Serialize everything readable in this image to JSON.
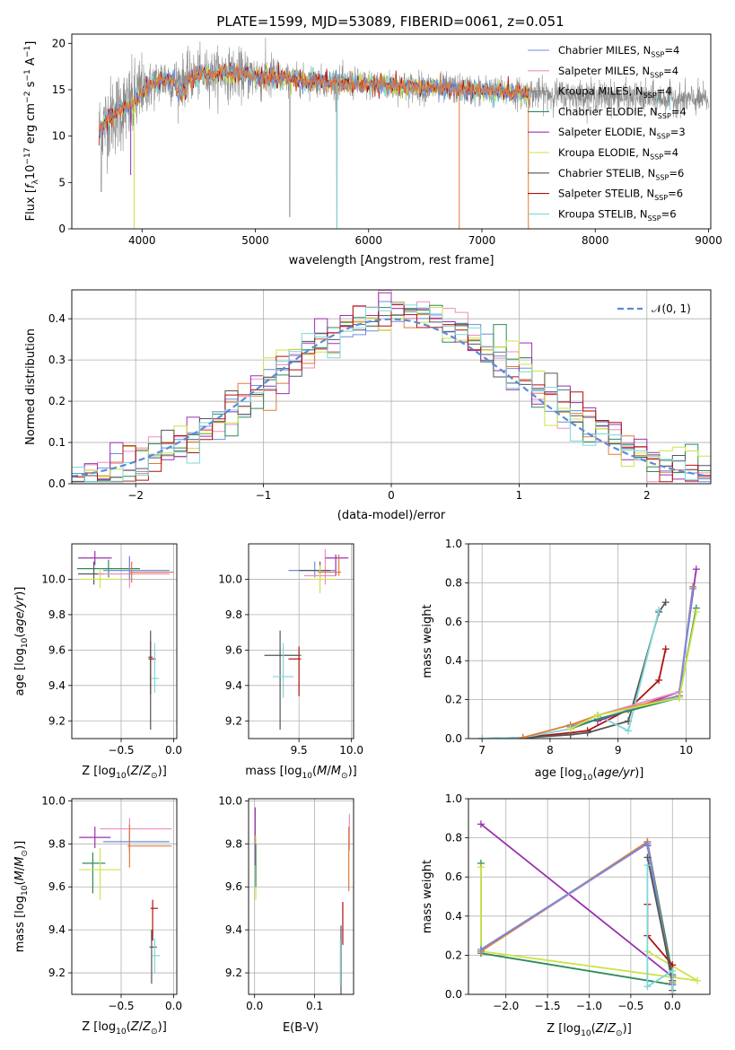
{
  "figure_title": "PLATE=1599, MJD=53089, FIBERID=0061, z=0.051",
  "colors": {
    "Chabrier MILES": "#6c8ee0",
    "Salpeter MILES": "#e98fbf",
    "Kroupa MILES": "#888888",
    "Chabrier ELODIE": "#2e8b57",
    "Salpeter ELODIE": "#9b30b0",
    "Kroupa ELODIE": "#cde34a",
    "Chabrier STELIB": "#555555",
    "Salpeter STELIB": "#b01010",
    "Kroupa STELIB": "#7fd6d9",
    "extra_orange": "#e07b39",
    "normal_curve": "#5b8bd6"
  },
  "chart_data": [
    {
      "id": "spectrum",
      "type": "line",
      "title": "PLATE=1599, MJD=53089, FIBERID=0061, z=0.051",
      "xlabel": "wavelength [Angstrom, rest frame]",
      "ylabel": "Flux [f_λ 10^-17 erg cm^-2 s^-1 A^-1]",
      "xlim": [
        3380,
        9020
      ],
      "ylim": [
        0,
        21
      ],
      "xticks": [
        4000,
        5000,
        6000,
        7000,
        8000,
        9000
      ],
      "yticks": [
        0,
        5,
        10,
        15,
        20
      ],
      "grid": false,
      "legend_position": "top-right",
      "legend": [
        {
          "label": "Chabrier MILES",
          "sub": "SSP",
          "n": "4"
        },
        {
          "label": "Salpeter MILES",
          "sub": "SSP",
          "n": "4"
        },
        {
          "label": "Kroupa MILES",
          "sub": "SSP",
          "n": "4"
        },
        {
          "label": "Chabrier ELODIE",
          "sub": "SSP",
          "n": "4"
        },
        {
          "label": "Salpeter ELODIE",
          "sub": "SSP",
          "n": "3"
        },
        {
          "label": "Kroupa ELODIE",
          "sub": "SSP",
          "n": "4"
        },
        {
          "label": "Chabrier STELIB",
          "sub": "SSP",
          "n": "6"
        },
        {
          "label": "Salpeter STELIB",
          "sub": "SSP",
          "n": "6"
        },
        {
          "label": "Kroupa STELIB",
          "sub": "SSP",
          "n": "6"
        }
      ],
      "approx_continuum": {
        "x": [
          3620,
          3700,
          3800,
          3900,
          3950,
          4000,
          4100,
          4200,
          4300,
          4500,
          4700,
          5000,
          5200,
          5500,
          5800,
          6100,
          6400,
          6700,
          7000,
          7200,
          7400
        ],
        "y": [
          10.5,
          11.8,
          12.8,
          13.2,
          14.0,
          14.8,
          15.6,
          16.2,
          15.8,
          16.6,
          16.8,
          16.5,
          16.2,
          16.0,
          15.7,
          15.5,
          15.3,
          15.1,
          14.9,
          14.7,
          14.6
        ]
      }
    },
    {
      "id": "residual_histogram",
      "type": "histogram",
      "xlabel": "(data-model)/error",
      "ylabel": "Normed distribution",
      "xlim": [
        -2.5,
        2.5
      ],
      "ylim": [
        0,
        0.47
      ],
      "xticks": [
        -2,
        -1,
        0,
        1,
        2
      ],
      "yticks": [
        0.0,
        0.1,
        0.2,
        0.3,
        0.4
      ],
      "grid": true,
      "legend_position": "top-right",
      "legend": [
        {
          "label": "𝒩(0, 1)"
        }
      ],
      "bin_width": 0.1,
      "reference_curve": "standard normal"
    },
    {
      "id": "age_vs_Z",
      "type": "errorbar",
      "xlabel": "Z [log10(Z/Z⊙)]",
      "ylabel": "age  [log10(age/yr)]",
      "xlim": [
        -0.97,
        0.03
      ],
      "ylim": [
        9.1,
        10.2
      ],
      "xticks": [
        -0.5,
        0.0
      ],
      "yticks": [
        9.2,
        9.4,
        9.6,
        9.8,
        10.0
      ],
      "grid": true,
      "points": [
        {
          "model": "Salpeter ELODIE",
          "x": -0.75,
          "y": 10.12,
          "xerr": [
            0.16,
            0.16
          ],
          "yerr": [
            0.04,
            0.04
          ]
        },
        {
          "model": "Chabrier ELODIE",
          "x": -0.62,
          "y": 10.06,
          "xerr": [
            0.3,
            0.3
          ],
          "yerr": [
            0.05,
            0.05
          ]
        },
        {
          "model": "Chabrier STELIB",
          "x": -0.76,
          "y": 10.03,
          "xerr": [
            0.15,
            0.1
          ],
          "yerr": [
            0.06,
            0.07
          ]
        },
        {
          "model": "Kroupa ELODIE",
          "x": -0.7,
          "y": 10.0,
          "xerr": [
            0.2,
            0.2
          ],
          "yerr": [
            0.05,
            0.06
          ]
        },
        {
          "model": "Salpeter MILES",
          "x": -0.42,
          "y": 10.03,
          "xerr": [
            0.3,
            0.38
          ],
          "yerr": [
            0.08,
            0.1
          ]
        },
        {
          "model": "Chabrier MILES",
          "x": -0.42,
          "y": 10.05,
          "xerr": [
            0.25,
            0.38
          ],
          "yerr": [
            0.05,
            0.08
          ]
        },
        {
          "model": "extra_orange",
          "x": -0.4,
          "y": 10.04,
          "xerr": [
            0.02,
            0.4
          ],
          "yerr": [
            0.06,
            0.06
          ]
        },
        {
          "model": "Salpeter STELIB",
          "x": -0.22,
          "y": 9.55,
          "xerr": [
            0.02,
            0.05
          ],
          "yerr": [
            0.2,
            0.1
          ]
        },
        {
          "model": "Chabrier STELIB",
          "x": -0.22,
          "y": 9.56,
          "xerr": [
            0.02,
            0.02
          ],
          "yerr": [
            0.41,
            0.15
          ]
        },
        {
          "model": "Kroupa STELIB",
          "x": -0.18,
          "y": 9.44,
          "xerr": [
            0.03,
            0.04
          ],
          "yerr": [
            0.08,
            0.2
          ]
        }
      ]
    },
    {
      "id": "age_vs_mass",
      "type": "errorbar",
      "xlabel": "mass [log10(M/M⊙)]",
      "ylabel": "",
      "xlim": [
        9.02,
        10.02
      ],
      "ylim": [
        9.1,
        10.2
      ],
      "xticks": [
        9.5,
        10.0
      ],
      "yticks": [
        9.2,
        9.4,
        9.6,
        9.8,
        10.0
      ],
      "grid": true,
      "points": [
        {
          "model": "Chabrier MILES",
          "x": 9.65,
          "y": 10.05,
          "xerr": [
            0.25,
            0.2
          ],
          "yerr": [
            0.04,
            0.05
          ]
        },
        {
          "model": "Salpeter MILES",
          "x": 9.75,
          "y": 10.02,
          "xerr": [
            0.2,
            0.1
          ],
          "yerr": [
            0.05,
            0.15
          ]
        },
        {
          "model": "Salpeter ELODIE",
          "x": 9.85,
          "y": 10.12,
          "xerr": [
            0.1,
            0.12
          ],
          "yerr": [
            0.1,
            0.02
          ]
        },
        {
          "model": "Chabrier STELIB",
          "x": 9.7,
          "y": 10.05,
          "xerr": [
            0.2,
            0.1
          ],
          "yerr": [
            0.06,
            0.05
          ]
        },
        {
          "model": "Kroupa ELODIE",
          "x": 9.7,
          "y": 10.0,
          "xerr": [
            0.1,
            0.15
          ],
          "yerr": [
            0.08,
            0.08
          ]
        },
        {
          "model": "extra_orange",
          "x": 9.88,
          "y": 10.04,
          "xerr": [
            0.2,
            0.02
          ],
          "yerr": [
            0.02,
            0.1
          ]
        },
        {
          "model": "Salpeter STELIB",
          "x": 9.5,
          "y": 9.55,
          "xerr": [
            0.1,
            0.02
          ],
          "yerr": [
            0.21,
            0.07
          ]
        },
        {
          "model": "Chabrier STELIB",
          "x": 9.32,
          "y": 9.57,
          "xerr": [
            0.15,
            0.2
          ],
          "yerr": [
            0.42,
            0.14
          ]
        },
        {
          "model": "Kroupa STELIB",
          "x": 9.35,
          "y": 9.45,
          "xerr": [
            0.1,
            0.1
          ],
          "yerr": [
            0.12,
            0.19
          ]
        }
      ]
    },
    {
      "id": "weight_vs_age",
      "type": "line",
      "xlabel": "age  [log10(age/yr)]",
      "ylabel": "mass weight",
      "xlim": [
        6.8,
        10.35
      ],
      "ylim": [
        0,
        1.0
      ],
      "xticks": [
        7,
        8,
        9,
        10
      ],
      "yticks": [
        0.0,
        0.2,
        0.4,
        0.6,
        0.8,
        1.0
      ],
      "grid": true,
      "series": [
        {
          "model": "Salpeter STELIB",
          "x": [
            7.0,
            7.6,
            8.3,
            8.55,
            9.15,
            9.6,
            9.7
          ],
          "y": [
            0.0,
            0.005,
            0.03,
            0.04,
            0.15,
            0.3,
            0.46
          ]
        },
        {
          "model": "Chabrier STELIB",
          "x": [
            7.0,
            7.6,
            8.3,
            8.55,
            9.15,
            9.6,
            9.7
          ],
          "y": [
            0.0,
            0.003,
            0.02,
            0.03,
            0.09,
            0.65,
            0.7
          ]
        },
        {
          "model": "Kroupa STELIB",
          "x": [
            7.0,
            7.6,
            8.3,
            8.7,
            9.15,
            9.6
          ],
          "y": [
            0.0,
            0.005,
            0.05,
            0.12,
            0.04,
            0.66
          ]
        },
        {
          "model": "Salpeter ELODIE",
          "x": [
            8.7,
            9.9,
            10.15
          ],
          "y": [
            0.09,
            0.24,
            0.87
          ]
        },
        {
          "model": "Salpeter MILES",
          "x": [
            8.3,
            8.7,
            9.9,
            10.1
          ],
          "y": [
            0.06,
            0.12,
            0.24,
            0.78
          ]
        },
        {
          "model": "extra_orange",
          "x": [
            7.6,
            8.3,
            8.7,
            9.9,
            10.1
          ],
          "y": [
            0.005,
            0.07,
            0.12,
            0.22,
            0.78
          ]
        },
        {
          "model": "Chabrier MILES",
          "x": [
            8.3,
            8.7,
            9.9,
            10.1
          ],
          "y": [
            0.06,
            0.1,
            0.22,
            0.77
          ]
        },
        {
          "model": "Chabrier ELODIE",
          "x": [
            8.3,
            8.7,
            9.9,
            10.15
          ],
          "y": [
            0.05,
            0.1,
            0.21,
            0.67
          ]
        },
        {
          "model": "Kroupa ELODIE",
          "x": [
            8.3,
            8.7,
            9.9,
            10.15
          ],
          "y": [
            0.05,
            0.12,
            0.21,
            0.65
          ]
        }
      ]
    },
    {
      "id": "mass_vs_Z",
      "type": "errorbar",
      "xlabel": "Z [log10(Z/Z⊙)]",
      "ylabel": "mass [log10(M/M⊙)]",
      "xlim": [
        -0.97,
        0.03
      ],
      "ylim": [
        9.1,
        10.01
      ],
      "xticks": [
        -0.5,
        0.0
      ],
      "yticks": [
        9.2,
        9.4,
        9.6,
        9.8,
        10.0
      ],
      "grid": true,
      "points": [
        {
          "model": "Salpeter ELODIE",
          "x": -0.75,
          "y": 9.83,
          "xerr": [
            0.15,
            0.15
          ],
          "yerr": [
            0.05,
            0.05
          ]
        },
        {
          "model": "Salpeter MILES",
          "x": -0.42,
          "y": 9.87,
          "xerr": [
            0.28,
            0.4
          ],
          "yerr": [
            0.1,
            0.05
          ]
        },
        {
          "model": "Chabrier MILES",
          "x": -0.42,
          "y": 9.81,
          "xerr": [
            0.25,
            0.38
          ],
          "yerr": [
            0.05,
            0.05
          ]
        },
        {
          "model": "extra_orange",
          "x": -0.42,
          "y": 9.79,
          "xerr": [
            0.02,
            0.4
          ],
          "yerr": [
            0.1,
            0.1
          ]
        },
        {
          "model": "Chabrier ELODIE",
          "x": -0.77,
          "y": 9.71,
          "xerr": [
            0.1,
            0.12
          ],
          "yerr": [
            0.14,
            0.05
          ]
        },
        {
          "model": "Kroupa ELODIE",
          "x": -0.7,
          "y": 9.68,
          "xerr": [
            0.2,
            0.2
          ],
          "yerr": [
            0.14,
            0.1
          ]
        },
        {
          "model": "Salpeter STELIB",
          "x": -0.2,
          "y": 9.5,
          "xerr": [
            0.02,
            0.05
          ],
          "yerr": [
            0.15,
            0.04
          ]
        },
        {
          "model": "Chabrier STELIB",
          "x": -0.21,
          "y": 9.32,
          "xerr": [
            0.02,
            0.05
          ],
          "yerr": [
            0.17,
            0.08
          ]
        },
        {
          "model": "Kroupa STELIB",
          "x": -0.18,
          "y": 9.28,
          "xerr": [
            0.02,
            0.05
          ],
          "yerr": [
            0.08,
            0.08
          ]
        }
      ]
    },
    {
      "id": "mass_vs_ebv",
      "type": "errorbar",
      "xlabel": "E(B-V)",
      "ylabel": "",
      "xlim": [
        -0.01,
        0.165
      ],
      "ylim": [
        9.1,
        10.01
      ],
      "xticks": [
        0.0,
        0.1
      ],
      "yticks": [
        9.2,
        9.4,
        9.6,
        9.8,
        10.0
      ],
      "grid": true,
      "points": [
        {
          "model": "Salpeter ELODIE",
          "x": 0.001,
          "y": 9.83,
          "xerr": [
            0.0,
            0.0
          ],
          "yerr": [
            0.13,
            0.14
          ]
        },
        {
          "model": "Kroupa ELODIE",
          "x": 0.002,
          "y": 9.68,
          "xerr": [
            0.0,
            0.0
          ],
          "yerr": [
            0.14,
            0.16
          ]
        },
        {
          "model": "Chabrier ELODIE",
          "x": 0.002,
          "y": 9.7,
          "xerr": [
            0.0,
            0.0
          ],
          "yerr": [
            0.1,
            0.1
          ]
        },
        {
          "model": "Salpeter MILES",
          "x": 0.158,
          "y": 9.87,
          "xerr": [
            0.0,
            0.0
          ],
          "yerr": [
            0.1,
            0.07
          ]
        },
        {
          "model": "extra_orange",
          "x": 0.157,
          "y": 9.78,
          "xerr": [
            0.0,
            0.0
          ],
          "yerr": [
            0.2,
            0.1
          ]
        },
        {
          "model": "Salpeter STELIB",
          "x": 0.147,
          "y": 9.48,
          "xerr": [
            0.0,
            0.0
          ],
          "yerr": [
            0.15,
            0.05
          ]
        },
        {
          "model": "Chabrier STELIB",
          "x": 0.144,
          "y": 9.3,
          "xerr": [
            0.0,
            0.0
          ],
          "yerr": [
            0.2,
            0.12
          ]
        },
        {
          "model": "Kroupa STELIB",
          "x": 0.143,
          "y": 9.28,
          "xerr": [
            0.0,
            0.0
          ],
          "yerr": [
            0.14,
            0.08
          ]
        }
      ]
    },
    {
      "id": "weight_vs_Z",
      "type": "line",
      "xlabel": "Z [log10(Z/Z⊙)]",
      "ylabel": "mass weight",
      "xlim": [
        -2.45,
        0.45
      ],
      "ylim": [
        0,
        1.0
      ],
      "xticks": [
        -2.0,
        -1.5,
        -1.0,
        -0.5,
        0.0
      ],
      "yticks": [
        0.0,
        0.2,
        0.4,
        0.6,
        0.8,
        1.0
      ],
      "grid": true,
      "series": [
        {
          "model": "Salpeter ELODIE",
          "x": [
            -2.3,
            0.0,
            -0.3,
            0.0
          ],
          "y": [
            0.87,
            0.09,
            0.76,
            0.05
          ]
        },
        {
          "model": "Chabrier ELODIE",
          "x": [
            -2.3,
            -2.3,
            0.0,
            -0.3,
            0.0
          ],
          "y": [
            0.67,
            0.21,
            0.05,
            0.78,
            0.1
          ]
        },
        {
          "model": "Kroupa ELODIE",
          "x": [
            -2.3,
            -2.3,
            0.3,
            -0.3
          ],
          "y": [
            0.65,
            0.22,
            0.07,
            0.22
          ]
        },
        {
          "model": "Salpeter MILES",
          "x": [
            -2.3,
            -0.3,
            0.0
          ],
          "y": [
            0.22,
            0.77,
            0.05
          ]
        },
        {
          "model": "extra_orange",
          "x": [
            -2.3,
            -0.3,
            0.0
          ],
          "y": [
            0.22,
            0.78,
            0.06
          ]
        },
        {
          "model": "Chabrier MILES",
          "x": [
            -2.3,
            -0.3,
            0.0
          ],
          "y": [
            0.23,
            0.77,
            0.05
          ]
        },
        {
          "model": "Salpeter STELIB",
          "x": [
            -0.3,
            -0.3,
            0.0,
            0.0
          ],
          "y": [
            0.46,
            0.3,
            0.15,
            0.0
          ]
        },
        {
          "model": "Chabrier STELIB",
          "x": [
            -0.3,
            0.0,
            0.0
          ],
          "y": [
            0.7,
            0.07,
            0.02
          ]
        },
        {
          "model": "Kroupa STELIB",
          "x": [
            -0.3,
            -0.3,
            0.0,
            0.0
          ],
          "y": [
            0.66,
            0.04,
            0.12,
            0.0
          ]
        }
      ]
    }
  ]
}
